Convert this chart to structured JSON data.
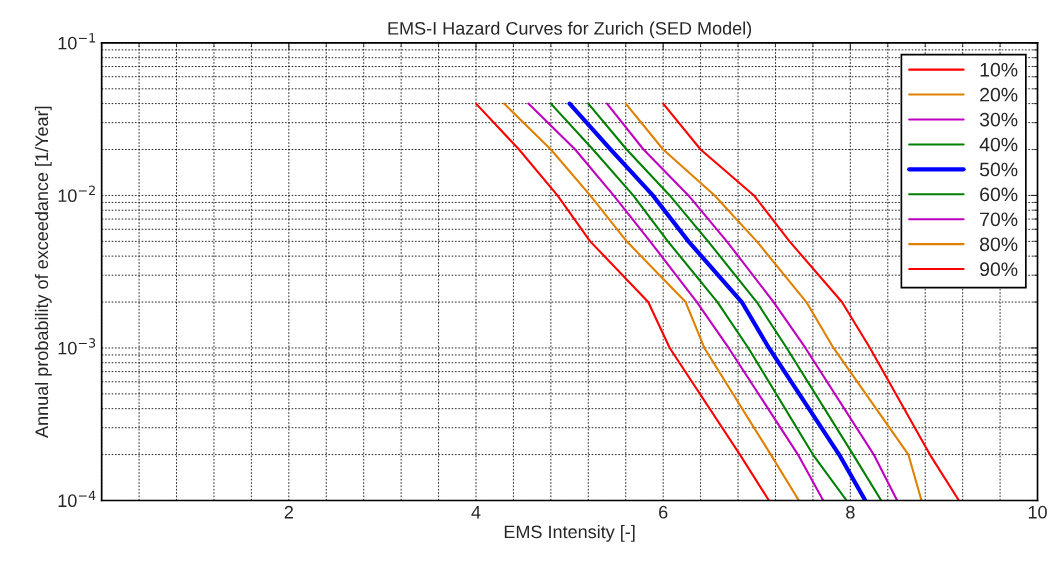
{
  "chart_data": {
    "type": "line",
    "title": "EMS-I Hazard Curves for Zurich (SED Model)",
    "xlabel": "EMS Intensity [-]",
    "ylabel": "Annual probability of exceedance [1/Year]",
    "log": "y",
    "xlim": [
      0,
      10
    ],
    "xticks": [
      2,
      4,
      6,
      8,
      10
    ],
    "ylim": [
      0.0001,
      0.1
    ],
    "yticks": [
      {
        "value": 0.0001,
        "label": "10$^{−4}$"
      },
      {
        "value": 0.001,
        "label": "10$^{−3}$"
      },
      {
        "value": 0.01,
        "label": "10$^{−2}$"
      },
      {
        "value": 0.1,
        "label": "10$^{−1}$"
      }
    ],
    "grid": true,
    "legend": "top right",
    "line_style": "solid",
    "marker": "none",
    "series": [
      {
        "name": "10%",
        "color": "#ff0000",
        "x": [
          4.0,
          4.46,
          4.87,
          5.22,
          5.84,
          6.07,
          6.82,
          7.13
        ],
        "values": [
          0.04,
          0.02,
          0.01,
          0.005,
          0.002,
          0.001,
          0.0002,
          0.0001
        ]
      },
      {
        "name": "20%",
        "color": "#e08000",
        "x": [
          4.3,
          4.8,
          5.22,
          5.61,
          6.24,
          6.44,
          7.15,
          7.45
        ],
        "values": [
          0.04,
          0.02,
          0.01,
          0.005,
          0.002,
          0.001,
          0.0002,
          0.0001
        ]
      },
      {
        "name": "30%",
        "color": "#c000c0",
        "x": [
          4.56,
          5.06,
          5.47,
          5.86,
          6.36,
          6.7,
          7.44,
          7.71
        ],
        "values": [
          0.04,
          0.02,
          0.01,
          0.005,
          0.002,
          0.001,
          0.0002,
          0.0001
        ]
      },
      {
        "name": "40%",
        "color": "#008000",
        "x": [
          4.8,
          5.25,
          5.68,
          6.05,
          6.58,
          6.91,
          7.6,
          7.96
        ],
        "values": [
          0.04,
          0.02,
          0.01,
          0.005,
          0.002,
          0.001,
          0.0002,
          0.0001
        ]
      },
      {
        "name": "50%",
        "color": "#0000ff",
        "x": [
          5.0,
          5.44,
          5.89,
          6.27,
          6.84,
          7.13,
          7.88,
          8.16
        ],
        "values": [
          0.04,
          0.02,
          0.01,
          0.005,
          0.002,
          0.001,
          0.0002,
          0.0001
        ]
      },
      {
        "name": "60%",
        "color": "#008000",
        "x": [
          5.2,
          5.61,
          6.07,
          6.48,
          7.0,
          7.32,
          8.03,
          8.33
        ],
        "values": [
          0.04,
          0.02,
          0.01,
          0.005,
          0.002,
          0.001,
          0.0002,
          0.0001
        ]
      },
      {
        "name": "70%",
        "color": "#c000c0",
        "x": [
          5.4,
          5.79,
          6.27,
          6.68,
          7.18,
          7.52,
          8.25,
          8.5
        ],
        "values": [
          0.04,
          0.02,
          0.01,
          0.005,
          0.002,
          0.001,
          0.0002,
          0.0001
        ]
      },
      {
        "name": "80%",
        "color": "#e08000",
        "x": [
          5.6,
          6.0,
          6.55,
          7.0,
          7.53,
          7.82,
          8.62,
          8.76
        ],
        "values": [
          0.04,
          0.02,
          0.01,
          0.005,
          0.002,
          0.001,
          0.0002,
          0.0001
        ]
      },
      {
        "name": "90%",
        "color": "#ff0000",
        "x": [
          6.0,
          6.4,
          6.97,
          7.35,
          7.91,
          8.21,
          8.85,
          9.16
        ],
        "values": [
          0.04,
          0.02,
          0.01,
          0.005,
          0.002,
          0.001,
          0.0002,
          0.0001
        ]
      }
    ]
  }
}
